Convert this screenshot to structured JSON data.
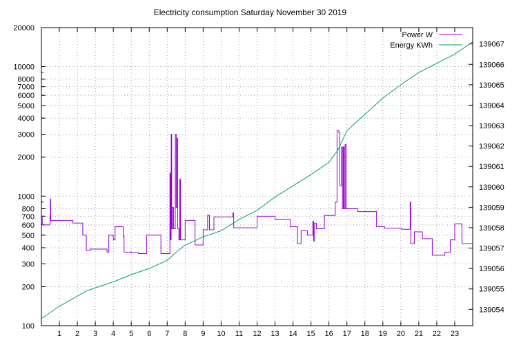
{
  "chart_data": {
    "type": "line",
    "title": "Electricity consumption Saturday November 30 2019",
    "x": {
      "range": [
        0,
        24
      ],
      "ticks": [
        1,
        2,
        3,
        4,
        5,
        6,
        7,
        8,
        9,
        10,
        11,
        12,
        13,
        14,
        15,
        16,
        17,
        18,
        19,
        20,
        21,
        22,
        23
      ],
      "tick_labels": [
        "1",
        "2",
        "3",
        "4",
        "5",
        "6",
        "7",
        "8",
        "9",
        "10",
        "11",
        "12",
        "13",
        "14",
        "15",
        "16",
        "17",
        "18",
        "19",
        "20",
        "21",
        "22",
        "23"
      ]
    },
    "y_left": {
      "scale": "log",
      "range": [
        100,
        20000
      ],
      "ticks": [
        100,
        200,
        300,
        400,
        500,
        600,
        700,
        800,
        1000,
        2000,
        3000,
        4000,
        5000,
        6000,
        7000,
        8000,
        10000,
        20000
      ],
      "tick_labels": [
        "100",
        "200",
        "300",
        "400",
        "500",
        "600",
        "700",
        "800",
        "1000",
        "2000",
        "3000",
        "4000",
        "5000",
        "6000",
        "7000",
        "8000",
        "10000",
        "20000"
      ]
    },
    "y_right": {
      "scale": "linear",
      "range": [
        139053.2,
        139067.8
      ],
      "ticks": [
        139054,
        139055,
        139056,
        139057,
        139058,
        139059,
        139060,
        139061,
        139062,
        139063,
        139064,
        139065,
        139066,
        139067
      ],
      "tick_labels": [
        "139054",
        "139055",
        "139056",
        "139057",
        "139058",
        "139059",
        "139060",
        "139061",
        "139062",
        "139063",
        "139064",
        "139065",
        "139066",
        "139067"
      ]
    },
    "grid": true,
    "legend_position": "top-right",
    "series": [
      {
        "name": "Power W",
        "axis": "left",
        "color": "#9400d3",
        "step": true,
        "points": [
          [
            0,
            680
          ],
          [
            0.05,
            600
          ],
          [
            0.45,
            600
          ],
          [
            0.48,
            700
          ],
          [
            0.5,
            950
          ],
          [
            0.52,
            650
          ],
          [
            1.0,
            650
          ],
          [
            1.75,
            650
          ],
          [
            1.75,
            620
          ],
          [
            2.3,
            620
          ],
          [
            2.3,
            500
          ],
          [
            2.5,
            500
          ],
          [
            2.5,
            380
          ],
          [
            2.7,
            390
          ],
          [
            3.6,
            390
          ],
          [
            3.65,
            370
          ],
          [
            3.75,
            500
          ],
          [
            4.0,
            500
          ],
          [
            4.0,
            460
          ],
          [
            4.1,
            460
          ],
          [
            4.1,
            580
          ],
          [
            4.55,
            580
          ],
          [
            4.55,
            490
          ],
          [
            4.6,
            490
          ],
          [
            4.6,
            370
          ],
          [
            5.0,
            365
          ],
          [
            5.4,
            360
          ],
          [
            5.8,
            360
          ],
          [
            5.85,
            500
          ],
          [
            6.65,
            500
          ],
          [
            6.65,
            360
          ],
          [
            7.1,
            360
          ],
          [
            7.15,
            1500
          ],
          [
            7.18,
            460
          ],
          [
            7.22,
            3000
          ],
          [
            7.25,
            560
          ],
          [
            7.3,
            820
          ],
          [
            7.35,
            560
          ],
          [
            7.45,
            3000
          ],
          [
            7.5,
            820
          ],
          [
            7.55,
            2800
          ],
          [
            7.58,
            560
          ],
          [
            7.65,
            460
          ],
          [
            7.7,
            1350
          ],
          [
            7.74,
            460
          ],
          [
            8.0,
            460
          ],
          [
            8.0,
            650
          ],
          [
            8.55,
            650
          ],
          [
            8.55,
            420
          ],
          [
            9.0,
            420
          ],
          [
            9.0,
            550
          ],
          [
            9.2,
            550
          ],
          [
            9.25,
            710
          ],
          [
            9.35,
            710
          ],
          [
            9.35,
            550
          ],
          [
            9.6,
            550
          ],
          [
            9.6,
            690
          ],
          [
            10.6,
            690
          ],
          [
            10.65,
            740
          ],
          [
            10.7,
            570
          ],
          [
            12.0,
            570
          ],
          [
            12.0,
            700
          ],
          [
            13.0,
            690
          ],
          [
            13.0,
            660
          ],
          [
            13.85,
            660
          ],
          [
            13.85,
            580
          ],
          [
            14.2,
            580
          ],
          [
            14.25,
            430
          ],
          [
            14.45,
            430
          ],
          [
            14.45,
            540
          ],
          [
            14.8,
            540
          ],
          [
            14.8,
            500
          ],
          [
            15.05,
            500
          ],
          [
            15.1,
            640
          ],
          [
            15.15,
            450
          ],
          [
            15.2,
            620
          ],
          [
            15.3,
            620
          ],
          [
            15.3,
            560
          ],
          [
            15.75,
            560
          ],
          [
            15.75,
            710
          ],
          [
            16.35,
            710
          ],
          [
            16.35,
            900
          ],
          [
            16.45,
            3200
          ],
          [
            16.55,
            3100
          ],
          [
            16.6,
            1200
          ],
          [
            16.7,
            2400
          ],
          [
            16.75,
            800
          ],
          [
            16.8,
            2400
          ],
          [
            16.85,
            800
          ],
          [
            16.9,
            2500
          ],
          [
            16.95,
            800
          ],
          [
            17.6,
            800
          ],
          [
            17.6,
            760
          ],
          [
            18.65,
            760
          ],
          [
            18.65,
            580
          ],
          [
            19.1,
            580
          ],
          [
            19.1,
            565
          ],
          [
            20.0,
            565
          ],
          [
            20.05,
            555
          ],
          [
            20.5,
            555
          ],
          [
            20.52,
            900
          ],
          [
            20.55,
            430
          ],
          [
            20.75,
            430
          ],
          [
            20.75,
            530
          ],
          [
            21.2,
            530
          ],
          [
            21.2,
            470
          ],
          [
            21.75,
            470
          ],
          [
            21.75,
            350
          ],
          [
            22.45,
            350
          ],
          [
            22.45,
            370
          ],
          [
            22.75,
            370
          ],
          [
            22.75,
            460
          ],
          [
            23.0,
            460
          ],
          [
            23.0,
            610
          ],
          [
            23.4,
            610
          ],
          [
            23.4,
            430
          ],
          [
            24.0,
            430
          ]
        ]
      },
      {
        "name": "Energy KWh",
        "axis": "right",
        "color": "#009e73",
        "step": false,
        "points": [
          [
            0,
            139053.55
          ],
          [
            1.0,
            139054.15
          ],
          [
            2.0,
            139054.65
          ],
          [
            2.5,
            139054.9
          ],
          [
            3.0,
            139055.05
          ],
          [
            4.0,
            139055.35
          ],
          [
            5.0,
            139055.7
          ],
          [
            6.0,
            139056.0
          ],
          [
            7.0,
            139056.4
          ],
          [
            7.5,
            139056.8
          ],
          [
            8.0,
            139057.15
          ],
          [
            9.0,
            139057.55
          ],
          [
            10.0,
            139057.85
          ],
          [
            11.0,
            139058.4
          ],
          [
            12.0,
            139058.85
          ],
          [
            13.0,
            139059.5
          ],
          [
            14.0,
            139060.05
          ],
          [
            15.0,
            139060.6
          ],
          [
            16.0,
            139061.2
          ],
          [
            16.5,
            139061.8
          ],
          [
            17.0,
            139062.75
          ],
          [
            18.0,
            139063.55
          ],
          [
            19.0,
            139064.35
          ],
          [
            20.0,
            139065.0
          ],
          [
            21.0,
            139065.6
          ],
          [
            22.0,
            139066.05
          ],
          [
            23.0,
            139066.5
          ],
          [
            24.0,
            139067.1
          ]
        ]
      }
    ]
  }
}
